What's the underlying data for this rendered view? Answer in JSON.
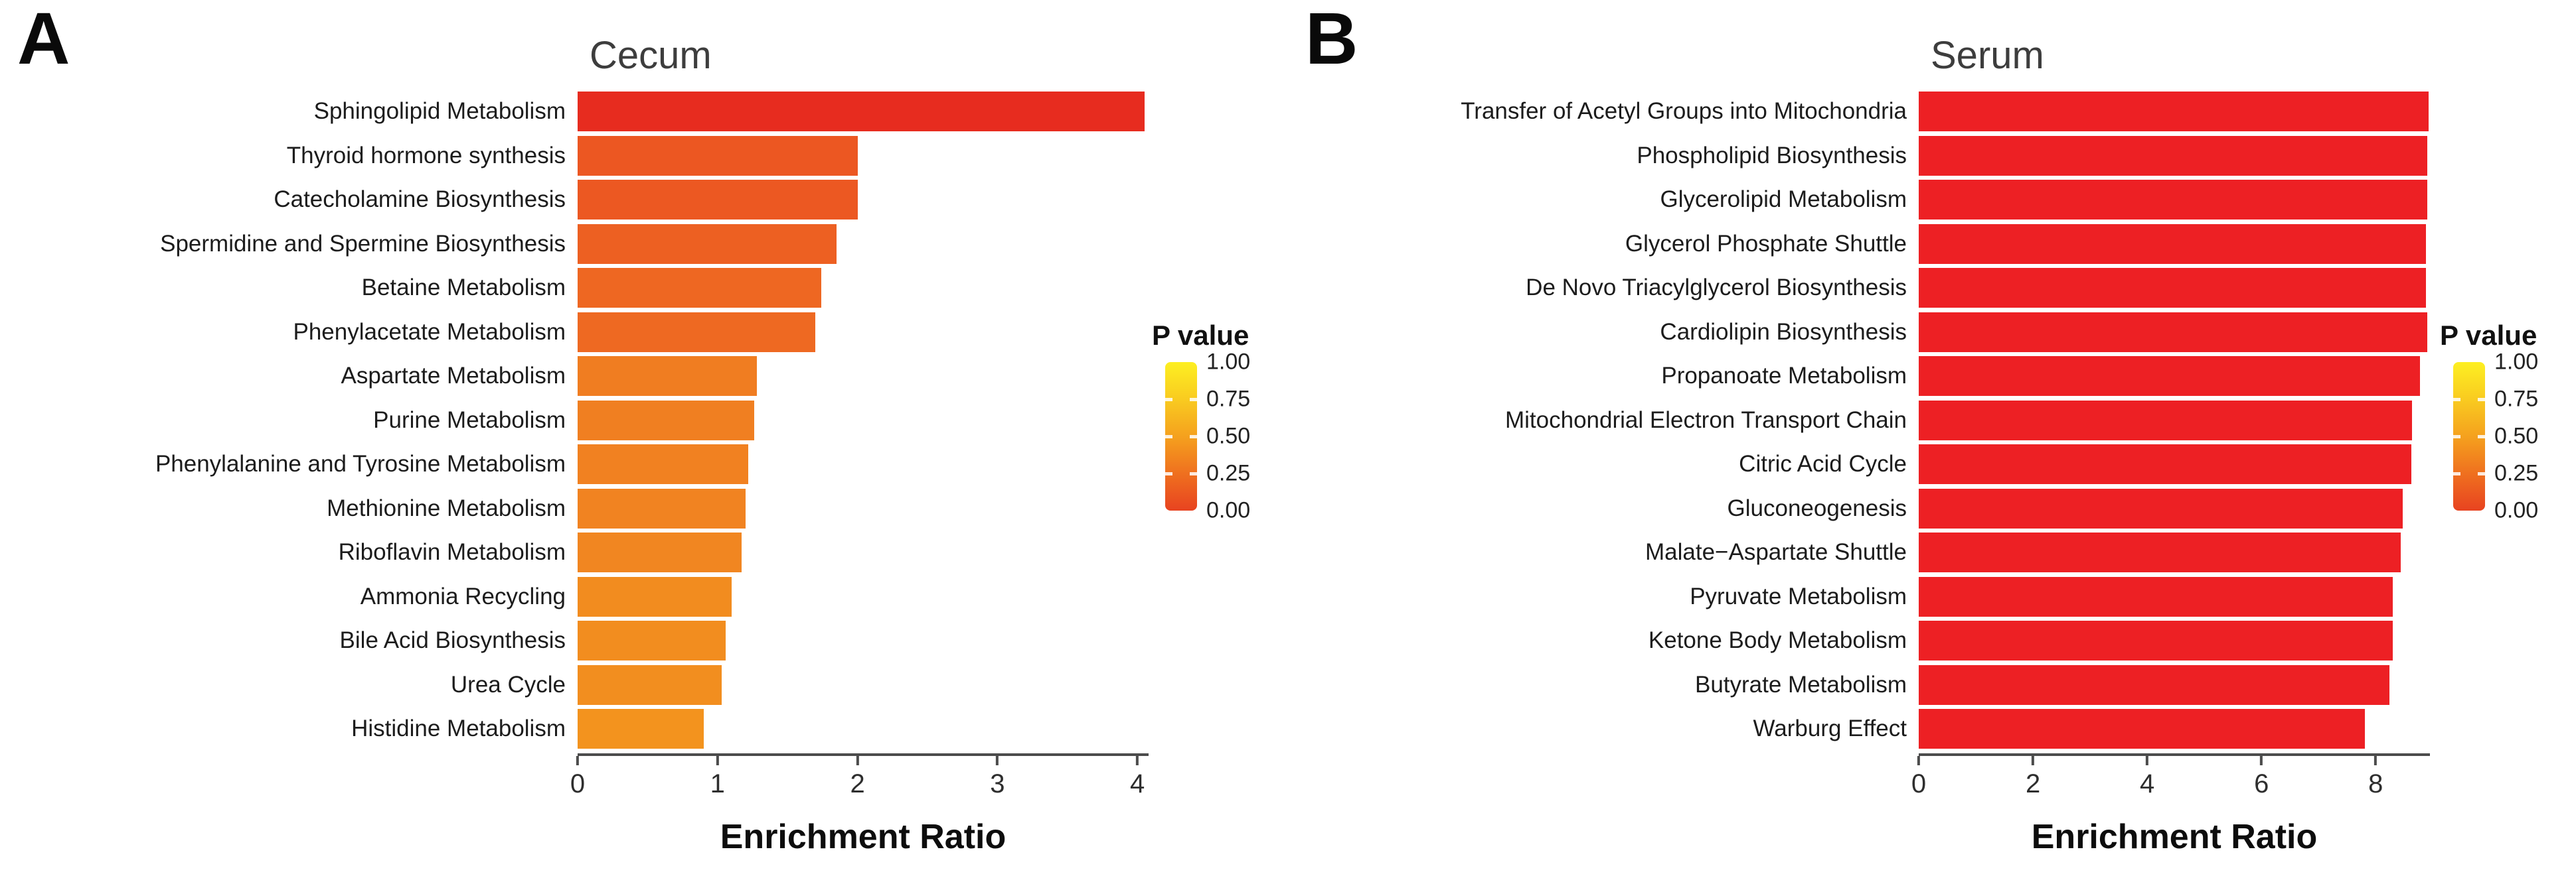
{
  "chart_data": [
    {
      "type": "bar",
      "orientation": "horizontal",
      "panel_label": "A",
      "title": "Cecum",
      "xlabel": "Enrichment Ratio",
      "xlim": [
        0,
        4.08
      ],
      "xticks": [
        0,
        1,
        2,
        3,
        4
      ],
      "grid": false,
      "legend_position": "right",
      "categories": [
        "Sphingolipid Metabolism",
        "Thyroid hormone synthesis",
        "Catecholamine Biosynthesis",
        "Spermidine and Spermine Biosynthesis",
        "Betaine Metabolism",
        "Phenylacetate Metabolism",
        "Aspartate Metabolism",
        "Purine Metabolism",
        "Phenylalanine and Tyrosine Metabolism",
        "Methionine Metabolism",
        "Riboflavin Metabolism",
        "Ammonia Recycling",
        "Bile Acid Biosynthesis",
        "Urea Cycle",
        "Histidine Metabolism"
      ],
      "values": [
        4.05,
        2.0,
        2.0,
        1.85,
        1.74,
        1.7,
        1.28,
        1.26,
        1.22,
        1.2,
        1.17,
        1.1,
        1.06,
        1.03,
        0.9
      ],
      "bar_colors": [
        "#e72c1f",
        "#ec5722",
        "#ec5822",
        "#ed6022",
        "#ee6722",
        "#ee6922",
        "#f07d21",
        "#f07f21",
        "#f18121",
        "#f18321",
        "#f18621",
        "#f28c1f",
        "#f28d1f",
        "#f28e1f",
        "#f3931e"
      ],
      "legend": {
        "title": "P value",
        "tick_labels": [
          "1.00",
          "0.75",
          "0.50",
          "0.25",
          "0.00"
        ],
        "gradient": [
          "#fdef22",
          "#f9cb20",
          "#f5a11e",
          "#ef701f",
          "#e84320"
        ]
      }
    },
    {
      "type": "bar",
      "orientation": "horizontal",
      "panel_label": "B",
      "title": "Serum",
      "xlabel": "Enrichment Ratio",
      "xlim": [
        0,
        8.95
      ],
      "xticks": [
        0,
        2,
        4,
        6,
        8
      ],
      "grid": false,
      "legend_position": "right",
      "categories": [
        "Transfer of Acetyl Groups into Mitochondria",
        "Phospholipid Biosynthesis",
        "Glycerolipid Metabolism",
        "Glycerol Phosphate Shuttle",
        "De Novo Triacylglycerol Biosynthesis",
        "Cardiolipin Biosynthesis",
        "Propanoate Metabolism",
        "Mitochondrial Electron Transport Chain",
        "Citric Acid Cycle",
        "Gluconeogenesis",
        "Malate−Aspartate Shuttle",
        "Pyruvate Metabolism",
        "Ketone Body Metabolism",
        "Butyrate Metabolism",
        "Warburg Effect"
      ],
      "values": [
        8.93,
        8.9,
        8.9,
        8.88,
        8.88,
        8.9,
        8.78,
        8.64,
        8.62,
        8.47,
        8.44,
        8.3,
        8.3,
        8.24,
        7.81
      ],
      "bar_colors": [
        "#ed2024",
        "#ed2024",
        "#ed2024",
        "#ed2024",
        "#ed2024",
        "#ed2024",
        "#ed2024",
        "#ed2024",
        "#ed2024",
        "#ed2024",
        "#ed2024",
        "#ed2024",
        "#ed2024",
        "#ed2024",
        "#ed2024"
      ],
      "legend": {
        "title": "P value",
        "tick_labels": [
          "1.00",
          "0.75",
          "0.50",
          "0.25",
          "0.00"
        ],
        "gradient": [
          "#fdef22",
          "#f9cb20",
          "#f5a11e",
          "#ef701f",
          "#e84320"
        ]
      }
    }
  ],
  "colors": {
    "axis_line": "#4c4c4c",
    "title_text": "#3d3d3d",
    "label_text": "#1c1c1c",
    "background": "#ffffff"
  }
}
